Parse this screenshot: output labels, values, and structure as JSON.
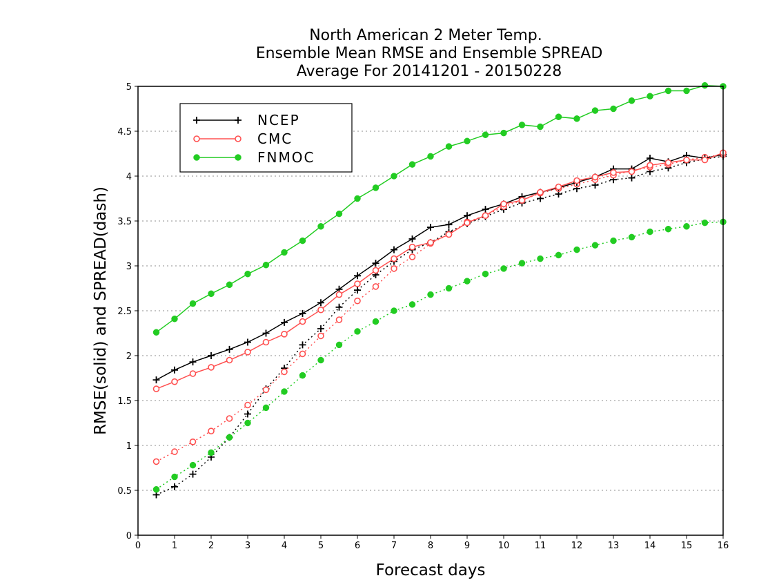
{
  "chart_data": {
    "type": "line",
    "title": [
      "North American 2 Meter Temp.",
      "Ensemble Mean RMSE and Ensemble SPREAD",
      "Average For 20141201 - 20150228"
    ],
    "xlabel": "Forecast days",
    "ylabel": "RMSE(solid) and SPREAD(dash)",
    "xlim": [
      0,
      16
    ],
    "ylim": [
      0,
      5
    ],
    "xticks": [
      0,
      1,
      2,
      3,
      4,
      5,
      6,
      7,
      8,
      9,
      10,
      11,
      12,
      13,
      14,
      15,
      16
    ],
    "yticks": [
      0,
      0.5,
      1,
      1.5,
      2,
      2.5,
      3,
      3.5,
      4,
      4.5,
      5
    ],
    "ytick_labels": [
      "0",
      "0.5",
      "1",
      "1.5",
      "2",
      "2.5",
      "3",
      "3.5",
      "4",
      "4.5",
      "5"
    ],
    "grid": "horizontal dotted",
    "legend_position": "top-left",
    "x": [
      0.5,
      1,
      1.5,
      2,
      2.5,
      3,
      3.5,
      4,
      4.5,
      5,
      5.5,
      6,
      6.5,
      7,
      7.5,
      8,
      8.5,
      9,
      9.5,
      10,
      10.5,
      11,
      11.5,
      12,
      12.5,
      13,
      13.5,
      14,
      14.5,
      15,
      15.5,
      16
    ],
    "series": [
      {
        "name": "NCEP",
        "color": "#000000",
        "marker": "plus",
        "rmse": [
          1.73,
          1.84,
          1.93,
          2.0,
          2.07,
          2.15,
          2.25,
          2.37,
          2.47,
          2.59,
          2.74,
          2.89,
          3.03,
          3.18,
          3.3,
          3.43,
          3.46,
          3.56,
          3.63,
          3.69,
          3.77,
          3.82,
          3.87,
          3.93,
          3.99,
          4.08,
          4.08,
          4.2,
          4.16,
          4.23,
          4.2,
          4.24
        ],
        "spread": [
          0.45,
          0.54,
          0.68,
          0.87,
          1.09,
          1.35,
          1.63,
          1.86,
          2.12,
          2.3,
          2.54,
          2.73,
          2.9,
          3.05,
          3.18,
          3.26,
          3.38,
          3.47,
          3.55,
          3.63,
          3.7,
          3.75,
          3.8,
          3.86,
          3.9,
          3.96,
          3.98,
          4.05,
          4.09,
          4.15,
          4.19,
          4.22
        ]
      },
      {
        "name": "CMC",
        "color": "#ff5050",
        "marker": "open-circle",
        "rmse": [
          1.63,
          1.71,
          1.8,
          1.87,
          1.95,
          2.04,
          2.15,
          2.24,
          2.38,
          2.51,
          2.68,
          2.8,
          2.95,
          3.08,
          3.21,
          3.26,
          3.35,
          3.48,
          3.56,
          3.69,
          3.73,
          3.82,
          3.88,
          3.95,
          3.99,
          4.04,
          4.05,
          4.12,
          4.15,
          4.18,
          4.18,
          4.26
        ],
        "spread": [
          0.82,
          0.93,
          1.04,
          1.16,
          1.3,
          1.45,
          1.62,
          1.82,
          2.02,
          2.22,
          2.4,
          2.61,
          2.77,
          2.97,
          3.1,
          3.25,
          3.35,
          3.49,
          3.56,
          3.66,
          3.73,
          3.81,
          3.86,
          3.91,
          3.96,
          4.01,
          4.06,
          4.1,
          4.13,
          4.18,
          4.21,
          4.24
        ]
      },
      {
        "name": "FNMOC",
        "color": "#22cc22",
        "marker": "filled-circle",
        "rmse": [
          2.26,
          2.41,
          2.58,
          2.69,
          2.79,
          2.91,
          3.01,
          3.15,
          3.28,
          3.44,
          3.58,
          3.75,
          3.87,
          4.0,
          4.13,
          4.22,
          4.33,
          4.39,
          4.46,
          4.48,
          4.57,
          4.55,
          4.66,
          4.64,
          4.73,
          4.75,
          4.84,
          4.89,
          4.95,
          4.95,
          5.01,
          5.0
        ],
        "spread": [
          0.51,
          0.65,
          0.78,
          0.92,
          1.09,
          1.25,
          1.42,
          1.6,
          1.78,
          1.95,
          2.12,
          2.27,
          2.38,
          2.5,
          2.57,
          2.68,
          2.75,
          2.83,
          2.91,
          2.97,
          3.03,
          3.08,
          3.12,
          3.18,
          3.23,
          3.28,
          3.32,
          3.38,
          3.41,
          3.44,
          3.48,
          3.49
        ]
      }
    ]
  }
}
